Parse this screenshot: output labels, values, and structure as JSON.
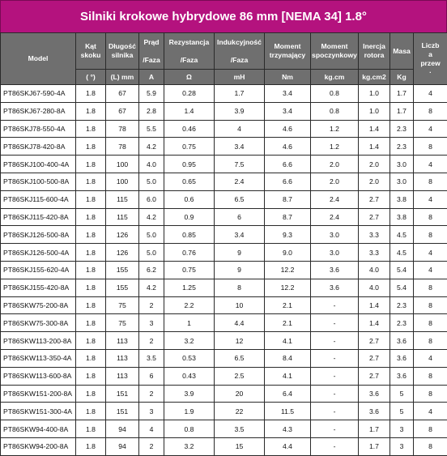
{
  "title": "Silniki krokowe hybrydowe 86 mm [NEMA 34] 1.8°",
  "headers": {
    "model": "Model",
    "kat": [
      "Kąt",
      "skoku"
    ],
    "dlugosc": [
      "Długość",
      "silnika"
    ],
    "prad": "Prąd",
    "rezystancja": "Rezystancja",
    "indukcyjnosc": "Indukcyjność",
    "moment_trzym": [
      "Moment",
      "trzymający"
    ],
    "moment_spocz": [
      "Moment",
      "spoczynkowy"
    ],
    "inercja": [
      "Inercja",
      "rotora"
    ],
    "masa": "Masa",
    "liczba": [
      "Liczb",
      "a",
      "przew"
    ]
  },
  "units": [
    "( °)",
    "(L) mm",
    "A",
    "Ω",
    "mH",
    "Nm",
    "kg.cm",
    "kg.cm2",
    "Kg",
    "·"
  ],
  "unit_prefix": [
    "/Faza",
    "/Faza",
    "/Faza"
  ],
  "rows": [
    [
      "PT86SKJ67-590-4A",
      "1.8",
      "67",
      "5.9",
      "0.28",
      "1.7",
      "3.4",
      "0.8",
      "1.0",
      "1.7",
      "4"
    ],
    [
      "PT86SKJ67-280-8A",
      "1.8",
      "67",
      "2.8",
      "1.4",
      "3.9",
      "3.4",
      "0.8",
      "1.0",
      "1.7",
      "8"
    ],
    [
      "PT86SKJ78-550-4A",
      "1.8",
      "78",
      "5.5",
      "0.46",
      "4",
      "4.6",
      "1.2",
      "1.4",
      "2.3",
      "4"
    ],
    [
      "PT86SKJ78-420-8A",
      "1.8",
      "78",
      "4.2",
      "0.75",
      "3.4",
      "4.6",
      "1.2",
      "1.4",
      "2.3",
      "8"
    ],
    [
      "PT86SKJ100-400-4A",
      "1.8",
      "100",
      "4.0",
      "0.95",
      "7.5",
      "6.6",
      "2.0",
      "2.0",
      "3.0",
      "4"
    ],
    [
      "PT86SKJ100-500-8A",
      "1.8",
      "100",
      "5.0",
      "0.65",
      "2.4",
      "6.6",
      "2.0",
      "2.0",
      "3.0",
      "8"
    ],
    [
      "PT86SKJ115-600-4A",
      "1.8",
      "115",
      "6.0",
      "0.6",
      "6.5",
      "8.7",
      "2.4",
      "2.7",
      "3.8",
      "4"
    ],
    [
      "PT86SKJ115-420-8A",
      "1.8",
      "115",
      "4.2",
      "0.9",
      "6",
      "8.7",
      "2.4",
      "2.7",
      "3.8",
      "8"
    ],
    [
      "PT86SKJ126-500-8A",
      "1.8",
      "126",
      "5.0",
      "0.85",
      "3.4",
      "9.3",
      "3.0",
      "3.3",
      "4.5",
      "8"
    ],
    [
      "PT86SKJ126-500-4A",
      "1.8",
      "126",
      "5.0",
      "0.76",
      "9",
      "9.0",
      "3.0",
      "3.3",
      "4.5",
      "4"
    ],
    [
      "PT86SKJ155-620-4A",
      "1.8",
      "155",
      "6.2",
      "0.75",
      "9",
      "12.2",
      "3.6",
      "4.0",
      "5.4",
      "4"
    ],
    [
      "PT86SKJ155-420-8A",
      "1.8",
      "155",
      "4.2",
      "1.25",
      "8",
      "12.2",
      "3.6",
      "4.0",
      "5.4",
      "8"
    ],
    [
      "PT86SKW75-200-8A",
      "1.8",
      "75",
      "2",
      "2.2",
      "10",
      "2.1",
      "-",
      "1.4",
      "2.3",
      "8"
    ],
    [
      "PT86SKW75-300-8A",
      "1.8",
      "75",
      "3",
      "1",
      "4.4",
      "2.1",
      "-",
      "1.4",
      "2.3",
      "8"
    ],
    [
      "PT86SKW113-200-8A",
      "1.8",
      "113",
      "2",
      "3.2",
      "12",
      "4.1",
      "-",
      "2.7",
      "3.6",
      "8"
    ],
    [
      "PT86SKW113-350-4A",
      "1.8",
      "113",
      "3.5",
      "0.53",
      "6.5",
      "8.4",
      "-",
      "2.7",
      "3.6",
      "4"
    ],
    [
      "PT86SKW113-600-8A",
      "1.8",
      "113",
      "6",
      "0.43",
      "2.5",
      "4.1",
      "-",
      "2.7",
      "3.6",
      "8"
    ],
    [
      "PT86SKW151-200-8A",
      "1.8",
      "151",
      "2",
      "3.9",
      "20",
      "6.4",
      "-",
      "3.6",
      "5",
      "8"
    ],
    [
      "PT86SKW151-300-4A",
      "1.8",
      "151",
      "3",
      "1.9",
      "22",
      "11.5",
      "-",
      "3.6",
      "5",
      "4"
    ],
    [
      "PT86SKW94-400-8A",
      "1.8",
      "94",
      "4",
      "0.8",
      "3.5",
      "4.3",
      "-",
      "1.7",
      "3",
      "8"
    ],
    [
      "PT86SKW94-200-8A",
      "1.8",
      "94",
      "2",
      "3.2",
      "15",
      "4.4",
      "-",
      "1.7",
      "3",
      "8"
    ]
  ]
}
